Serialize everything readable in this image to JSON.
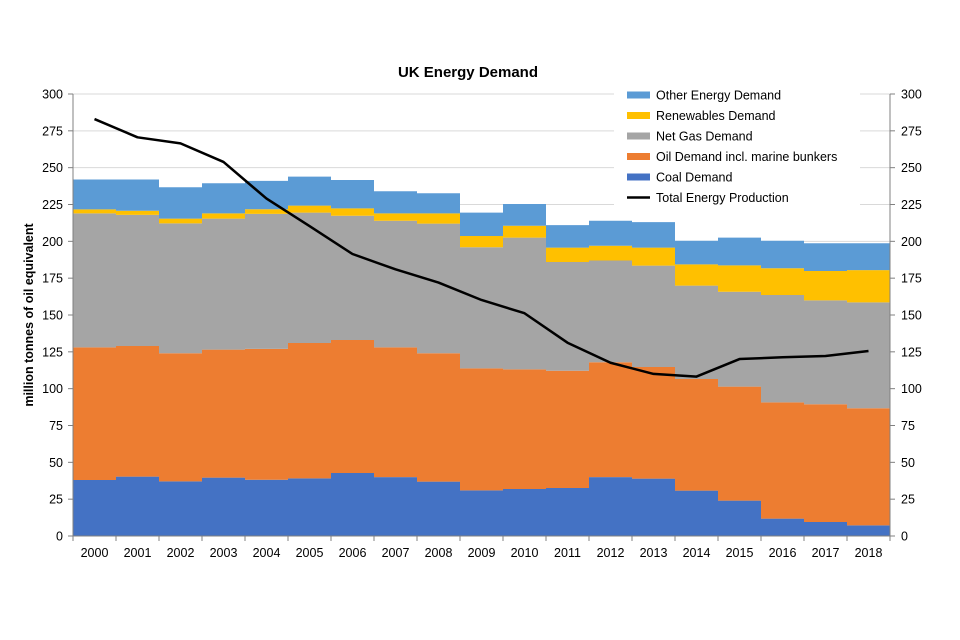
{
  "chart_data": {
    "type": "area",
    "title": "UK Energy Demand",
    "xlabel": "",
    "ylabel": "million tonnes of oil equivalent",
    "ylim": [
      0,
      300
    ],
    "y2lim": [
      0,
      300
    ],
    "yticks": [
      0,
      25,
      50,
      75,
      100,
      125,
      150,
      175,
      200,
      225,
      250,
      275,
      300
    ],
    "grid": true,
    "legend_position": "top-right",
    "categories": [
      "2000",
      "2001",
      "2002",
      "2003",
      "2004",
      "2005",
      "2006",
      "2007",
      "2008",
      "2009",
      "2010",
      "2011",
      "2012",
      "2013",
      "2014",
      "2015",
      "2016",
      "2017",
      "2018"
    ],
    "stacked_series": [
      {
        "name": "Coal Demand",
        "color": "#4472C4",
        "values": [
          38.0,
          40.3,
          37.1,
          39.6,
          38.2,
          39.1,
          42.8,
          40.0,
          36.9,
          31.0,
          31.9,
          32.6,
          40.0,
          38.9,
          30.8,
          24.0,
          11.8,
          9.5,
          7.2
        ]
      },
      {
        "name": "Oil Demand incl. marine bunkers",
        "color": "#ED7D31",
        "values": [
          90.0,
          88.7,
          86.9,
          86.9,
          88.8,
          91.9,
          90.2,
          88.0,
          87.1,
          82.8,
          81.2,
          79.6,
          77.9,
          75.8,
          75.8,
          77.4,
          78.9,
          79.9,
          79.5
        ]
      },
      {
        "name": "Net Gas Demand",
        "color": "#A5A5A5",
        "values": [
          91.0,
          89.0,
          88.2,
          88.9,
          91.6,
          88.5,
          84.4,
          86.0,
          88.0,
          82.2,
          89.4,
          73.8,
          69.1,
          68.8,
          63.3,
          64.4,
          72.9,
          70.5,
          71.9
        ]
      },
      {
        "name": "Renewables Demand",
        "color": "#FFC000",
        "values": [
          2.7,
          2.8,
          3.2,
          3.6,
          3.2,
          4.7,
          5.0,
          5.0,
          7.0,
          7.6,
          8.1,
          9.7,
          10.0,
          12.2,
          14.5,
          17.9,
          18.1,
          20.0,
          21.9
        ]
      },
      {
        "name": "Other Energy Demand",
        "color": "#5B9BD5",
        "values": [
          20.3,
          21.2,
          21.3,
          20.4,
          19.2,
          19.7,
          19.2,
          15.0,
          13.6,
          15.9,
          14.7,
          15.3,
          17.0,
          17.3,
          16.0,
          18.8,
          18.7,
          18.8,
          18.2
        ]
      }
    ],
    "line_series": [
      {
        "name": "Total Energy Production",
        "color": "#000000",
        "values": [
          283.0,
          270.6,
          266.5,
          253.9,
          229.0,
          210.4,
          191.4,
          181.0,
          172.0,
          160.2,
          151.2,
          131.2,
          117.6,
          110.0,
          108.2,
          120.1,
          121.3,
          122.2,
          125.6
        ]
      }
    ],
    "legend": [
      {
        "label": "Other Energy Demand",
        "color": "#5B9BD5",
        "kind": "area"
      },
      {
        "label": "Renewables Demand",
        "color": "#FFC000",
        "kind": "area"
      },
      {
        "label": "Net Gas Demand",
        "color": "#A5A5A5",
        "kind": "area"
      },
      {
        "label": "Oil Demand incl. marine bunkers",
        "color": "#ED7D31",
        "kind": "area"
      },
      {
        "label": "Coal Demand",
        "color": "#4472C4",
        "kind": "area"
      },
      {
        "label": "Total Energy Production",
        "color": "#000000",
        "kind": "line"
      }
    ]
  }
}
